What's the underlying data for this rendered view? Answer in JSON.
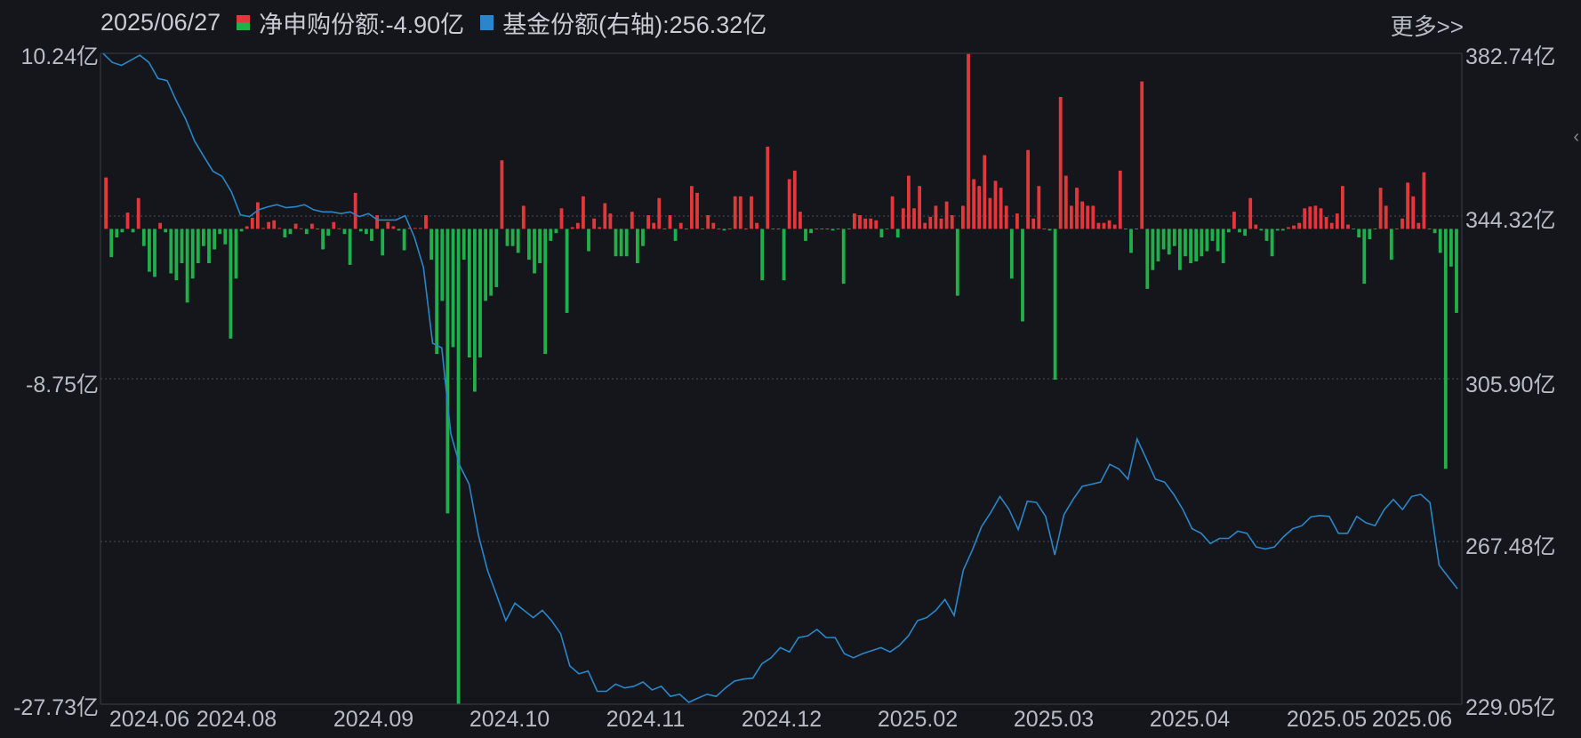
{
  "header": {
    "date": "2025/06/27",
    "net_label": "净申购份额:-4.90亿",
    "share_label": "基金份额(右轴):256.32亿",
    "more": "更多>>"
  },
  "colors": {
    "positive": "#e2373b",
    "negative": "#20b04b",
    "line": "#2a86c8",
    "background": "#14161b"
  },
  "chart_data": {
    "type": "bar+line",
    "left_axis": {
      "unit": "亿",
      "ylim": [
        -27.73,
        10.24
      ],
      "tick_labels": [
        "10.24亿",
        "-8.75亿",
        "-27.73亿"
      ]
    },
    "right_axis": {
      "unit": "亿",
      "ylim": [
        229.05,
        382.74
      ],
      "tick_labels": [
        "382.74亿",
        "344.32亿",
        "305.90亿",
        "267.48亿",
        "229.05亿"
      ]
    },
    "x_tick_labels": [
      "2024.06",
      "2024.08",
      "2024.09",
      "2024.10",
      "2024.11",
      "2024.12",
      "2025.02",
      "2025.03",
      "2025.04",
      "2025.05",
      "2025.06"
    ],
    "series": [
      {
        "name": "净申购份额",
        "type": "bar",
        "axis": "left",
        "values": [
          3.0,
          -1.65,
          -0.5,
          -0.2,
          0.95,
          -0.2,
          1.8,
          -1.0,
          -2.5,
          -2.8,
          0.35,
          -0.2,
          -2.6,
          -3.0,
          -2.0,
          -4.3,
          -2.9,
          -2.0,
          -1.0,
          -2.0,
          -1.2,
          -0.3,
          -0.9,
          -6.4,
          -2.9,
          -0.15,
          0.15,
          0.65,
          1.55,
          0.05,
          0.4,
          0.5,
          0.05,
          -0.5,
          -0.3,
          0.3,
          0.03,
          -0.3,
          0.3,
          0.02,
          -1.2,
          -0.4,
          0.4,
          0.03,
          -0.3,
          -2.1,
          2.1,
          -0.15,
          -0.3,
          -0.7,
          0.8,
          -1.55,
          0.4,
          0.15,
          -0.1,
          -1.25,
          0.07,
          0.05,
          0.05,
          0.8,
          -1.8,
          -7.3,
          -4.2,
          -16.6,
          -6.9,
          -27.7,
          -1.8,
          -7.5,
          -9.5,
          -7.5,
          -4.2,
          -3.9,
          -3.4,
          4.0,
          -1.0,
          -1.0,
          -1.4,
          1.35,
          -1.8,
          -2.6,
          -2.0,
          -7.3,
          -0.7,
          -0.25,
          1.2,
          -4.9,
          0.1,
          0.35,
          1.9,
          -1.3,
          0.6,
          0.1,
          1.5,
          0.9,
          -1.6,
          -1.6,
          -1.6,
          1.0,
          -2.0,
          -1.0,
          0.8,
          0.35,
          1.8,
          0.02,
          0.8,
          -0.7,
          0.35,
          0.02,
          2.5,
          2.1,
          0.02,
          0.8,
          0.35,
          0.02,
          -0.1,
          0.02,
          1.9,
          1.9,
          0.02,
          1.9,
          0.35,
          -3.0,
          4.8,
          0.02,
          0.02,
          -3.0,
          2.9,
          3.4,
          1.0,
          -0.7,
          -0.25,
          0.02,
          0.02,
          0.02,
          -0.1,
          0.02,
          -3.2,
          0.02,
          0.9,
          0.8,
          0.6,
          0.6,
          0.5,
          -0.5,
          0.02,
          1.9,
          -0.5,
          1.2,
          3.1,
          1.2,
          2.5,
          0.35,
          0.7,
          1.35,
          0.6,
          1.6,
          0.8,
          -3.9,
          1.35,
          10.2,
          2.9,
          2.5,
          4.3,
          1.8,
          2.8,
          2.4,
          1.35,
          -2.9,
          0.9,
          -5.4,
          4.6,
          0.6,
          2.5,
          0.02,
          -0.1,
          -8.8,
          7.7,
          3.1,
          1.35,
          2.4,
          1.6,
          1.35,
          1.35,
          0.35,
          0.35,
          0.5,
          0.25,
          3.4,
          0.02,
          -1.4,
          0.02,
          8.6,
          -3.5,
          -2.4,
          -1.9,
          -1.2,
          -1.5,
          -1.0,
          -2.4,
          -1.6,
          -2.0,
          -1.9,
          -1.6,
          -1.3,
          -0.7,
          -1.3,
          -2.0,
          -0.2,
          1.0,
          -0.2,
          -0.4,
          1.8,
          0.25,
          -0.1,
          -0.7,
          -1.6,
          -0.1,
          -0.1,
          0.1,
          0.2,
          0.35,
          1.2,
          1.3,
          1.35,
          1.2,
          0.7,
          0.35,
          0.9,
          2.5,
          0.25,
          0.02,
          -0.5,
          -3.2,
          -0.6,
          0.02,
          2.4,
          1.35,
          -1.8,
          0.02,
          0.6,
          2.7,
          1.9,
          0.35,
          3.3,
          0.02,
          -0.25,
          -1.4,
          -14.0,
          -2.2,
          -4.9
        ]
      },
      {
        "name": "基金份额(右轴)",
        "type": "line",
        "axis": "right",
        "values": [
          382.7,
          380.6,
          379.9,
          381.1,
          382.3,
          380.6,
          376.8,
          376.3,
          371.5,
          367.3,
          362.0,
          358.4,
          354.9,
          353.7,
          350.1,
          344.6,
          344.2,
          345.8,
          346.5,
          347.0,
          346.3,
          346.5,
          347.0,
          345.8,
          345.3,
          345.3,
          344.9,
          345.3,
          344.2,
          344.9,
          343.4,
          343.4,
          343.4,
          344.4,
          339.4,
          332.2,
          314.3,
          313.2,
          292.9,
          285.3,
          281.0,
          269.1,
          260.7,
          254.8,
          248.8,
          252.9,
          251.2,
          249.5,
          251.2,
          248.8,
          245.7,
          238.1,
          236.2,
          236.9,
          232.1,
          232.1,
          233.8,
          232.9,
          233.3,
          234.3,
          232.4,
          233.3,
          230.9,
          231.4,
          229.5,
          230.5,
          231.4,
          230.9,
          232.9,
          234.5,
          235.0,
          235.2,
          238.6,
          240.0,
          242.4,
          241.4,
          244.8,
          245.2,
          246.7,
          244.8,
          244.8,
          241.0,
          240.0,
          241.0,
          241.7,
          242.4,
          241.4,
          242.9,
          245.2,
          248.8,
          249.5,
          251.2,
          253.8,
          250.0,
          260.7,
          265.5,
          271.0,
          274.3,
          278.1,
          275.0,
          270.3,
          277.0,
          276.7,
          273.4,
          264.3,
          273.8,
          277.4,
          280.5,
          281.0,
          281.5,
          285.7,
          284.6,
          282.2,
          291.7,
          287.0,
          282.2,
          281.5,
          278.6,
          275.0,
          270.5,
          269.4,
          267.0,
          268.2,
          268.2,
          269.9,
          269.4,
          266.2,
          265.7,
          266.2,
          268.6,
          270.5,
          271.2,
          273.3,
          273.6,
          273.4,
          269.4,
          269.4,
          273.4,
          271.9,
          271.2,
          275.0,
          277.4,
          275.0,
          278.1,
          278.6,
          276.7,
          261.9,
          259.1,
          256.32
        ]
      }
    ],
    "grid": "dotted horizontal"
  }
}
